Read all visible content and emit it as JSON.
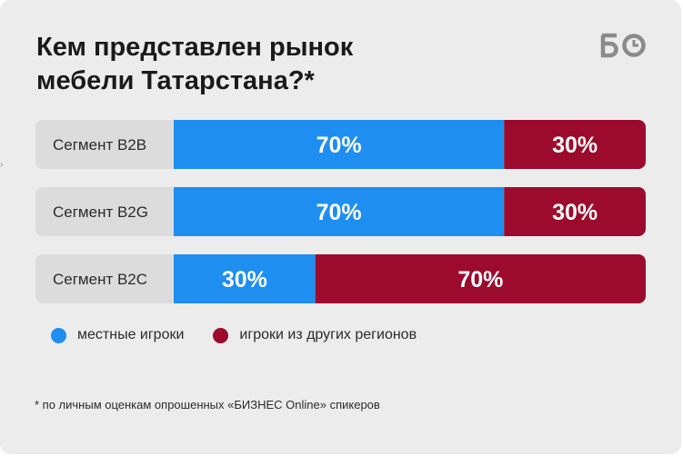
{
  "header": {
    "title_line1": "Кем представлен рынок",
    "title_line2": "мебели Татарстана?*",
    "logo_icon": "bo-logo-icon"
  },
  "colors": {
    "local": "#1e8ef0",
    "other": "#9c0b2d",
    "row_bg": "#dcdcdc"
  },
  "chart_data": {
    "type": "bar",
    "stacked": true,
    "orientation": "horizontal",
    "categories": [
      "Сегмент B2B",
      "Сегмент B2G",
      "Сегмент B2C"
    ],
    "series": [
      {
        "name": "местные игроки",
        "values": [
          70,
          70,
          30
        ],
        "labels": [
          "70%",
          "70%",
          "30%"
        ]
      },
      {
        "name": "игроки из других регионов",
        "values": [
          30,
          30,
          70
        ],
        "labels": [
          "30%",
          "30%",
          "70%"
        ]
      }
    ],
    "xlim": [
      0,
      100
    ]
  },
  "legend": [
    {
      "label": "местные игроки"
    },
    {
      "label": "игроки из других регионов"
    }
  ],
  "footnote": "* по личным оценкам опрошенных «БИЗНЕС Online» спикеров"
}
